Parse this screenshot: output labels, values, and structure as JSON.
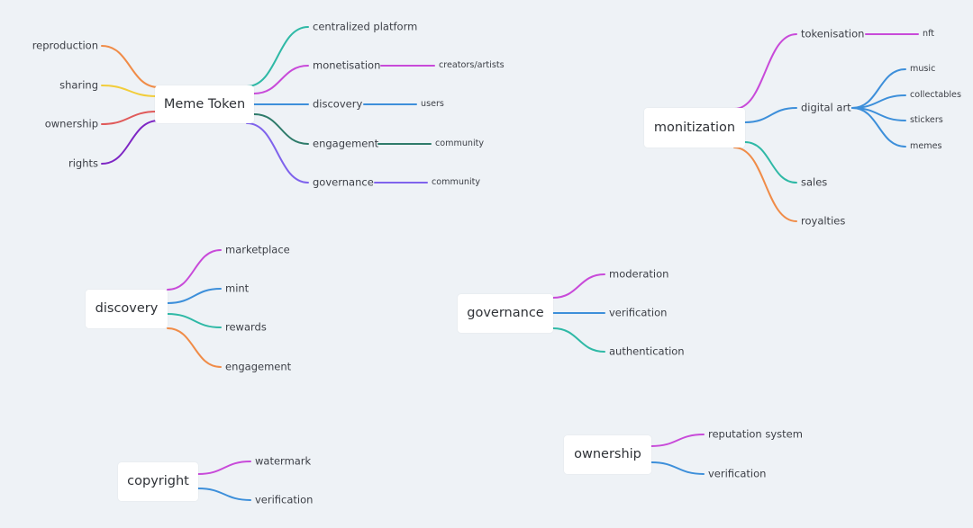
{
  "colors": {
    "orange": "#f08c48",
    "yellow": "#f2cd3a",
    "red": "#e05a5a",
    "purple": "#7e26c4",
    "teal": "#2fb9a6",
    "magenta": "#c84ad9",
    "blue": "#3d8fda",
    "darkgreen": "#2e7b6a",
    "violet": "#7f63ec"
  },
  "maps": {
    "meme_token": {
      "root": "Meme Token",
      "left": [
        {
          "label": "reproduction",
          "color": "orange"
        },
        {
          "label": "sharing",
          "color": "yellow"
        },
        {
          "label": "ownership",
          "color": "red"
        },
        {
          "label": "rights",
          "color": "purple"
        }
      ],
      "right": [
        {
          "label": "centralized platform",
          "color": "teal",
          "children": []
        },
        {
          "label": "monetisation",
          "color": "magenta",
          "children": [
            "creators/artists"
          ]
        },
        {
          "label": "discovery",
          "color": "blue",
          "children": [
            "users"
          ]
        },
        {
          "label": "engagement",
          "color": "darkgreen",
          "children": [
            "community"
          ]
        },
        {
          "label": "governance",
          "color": "violet",
          "children": [
            "community"
          ]
        }
      ]
    },
    "monitization": {
      "root": "monitization",
      "right": [
        {
          "label": "tokenisation",
          "color": "magenta",
          "children": [
            "nft"
          ]
        },
        {
          "label": "digital art",
          "color": "blue",
          "children": [
            "music",
            "collectables",
            "stickers",
            "memes"
          ]
        },
        {
          "label": "sales",
          "color": "teal",
          "children": []
        },
        {
          "label": "royalties",
          "color": "orange",
          "children": []
        }
      ]
    },
    "discovery": {
      "root": "discovery",
      "right": [
        {
          "label": "marketplace",
          "color": "magenta"
        },
        {
          "label": "mint",
          "color": "blue"
        },
        {
          "label": "rewards",
          "color": "teal"
        },
        {
          "label": "engagement",
          "color": "orange"
        }
      ]
    },
    "governance": {
      "root": "governance",
      "right": [
        {
          "label": "moderation",
          "color": "magenta"
        },
        {
          "label": "verification",
          "color": "blue"
        },
        {
          "label": "authentication",
          "color": "teal"
        }
      ]
    },
    "copyright": {
      "root": "copyright",
      "right": [
        {
          "label": "watermark",
          "color": "magenta"
        },
        {
          "label": "verification",
          "color": "blue"
        }
      ]
    },
    "ownership": {
      "root": "ownership",
      "right": [
        {
          "label": "reputation system",
          "color": "magenta"
        },
        {
          "label": "verification",
          "color": "blue"
        }
      ]
    }
  }
}
